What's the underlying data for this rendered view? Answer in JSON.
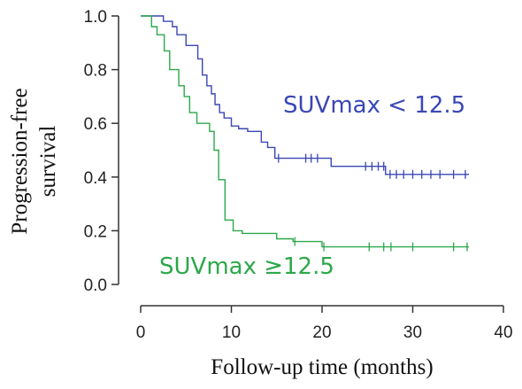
{
  "chart_data": {
    "type": "line",
    "subtype": "kaplan-meier step",
    "title": "",
    "xlabel": "Follow-up time (months)",
    "ylabel": "Progression-free survival",
    "xlim": [
      0,
      40
    ],
    "ylim": [
      0.0,
      1.0
    ],
    "x_ticks": [
      "0",
      "10",
      "20",
      "30",
      "40"
    ],
    "y_ticks": [
      "0.0",
      "0.2",
      "0.4",
      "0.6",
      "0.8",
      "1.0"
    ],
    "grid": false,
    "series": [
      {
        "name": "SUVmax < 12.5",
        "color": "#3a47b5",
        "steps": [
          [
            0,
            1.0
          ],
          [
            2.5,
            0.98
          ],
          [
            3.5,
            0.96
          ],
          [
            4.0,
            0.93
          ],
          [
            5.0,
            0.89
          ],
          [
            6.3,
            0.84
          ],
          [
            6.8,
            0.78
          ],
          [
            7.3,
            0.74
          ],
          [
            7.8,
            0.71
          ],
          [
            8.2,
            0.67
          ],
          [
            8.7,
            0.64
          ],
          [
            9.2,
            0.62
          ],
          [
            10.0,
            0.59
          ],
          [
            10.8,
            0.58
          ],
          [
            11.8,
            0.57
          ],
          [
            13.3,
            0.53
          ],
          [
            14.0,
            0.51
          ],
          [
            14.8,
            0.47
          ],
          [
            21.0,
            0.44
          ],
          [
            27.0,
            0.41
          ]
        ],
        "end_x": 36.2,
        "censored": [
          15.2,
          18.2,
          18.8,
          19.5,
          24.8,
          25.5,
          26.2,
          26.8,
          27.5,
          28.2,
          29.0,
          30.0,
          31.0,
          32.0,
          33.0,
          34.5,
          35.8
        ]
      },
      {
        "name": "SUVmax ≥12.5",
        "color": "#2ca84a",
        "steps": [
          [
            0,
            1.0
          ],
          [
            1.2,
            0.96
          ],
          [
            1.8,
            0.93
          ],
          [
            2.6,
            0.87
          ],
          [
            3.2,
            0.8
          ],
          [
            4.2,
            0.74
          ],
          [
            4.8,
            0.7
          ],
          [
            5.4,
            0.64
          ],
          [
            6.2,
            0.6
          ],
          [
            7.6,
            0.57
          ],
          [
            8.1,
            0.5
          ],
          [
            8.6,
            0.39
          ],
          [
            9.3,
            0.24
          ],
          [
            10.2,
            0.2
          ],
          [
            11.2,
            0.19
          ],
          [
            15.0,
            0.17
          ],
          [
            16.8,
            0.16
          ],
          [
            20.0,
            0.14
          ]
        ],
        "end_x": 36.2,
        "censored": [
          17.0,
          20.2,
          25.2,
          26.8,
          27.6,
          30.0,
          34.5,
          36.0
        ]
      }
    ],
    "annotations": [
      {
        "text": "SUVmax < 12.5",
        "color": "#3a47b5"
      },
      {
        "text": "SUVmax ≥12.5",
        "color": "#2ca84a"
      }
    ]
  }
}
